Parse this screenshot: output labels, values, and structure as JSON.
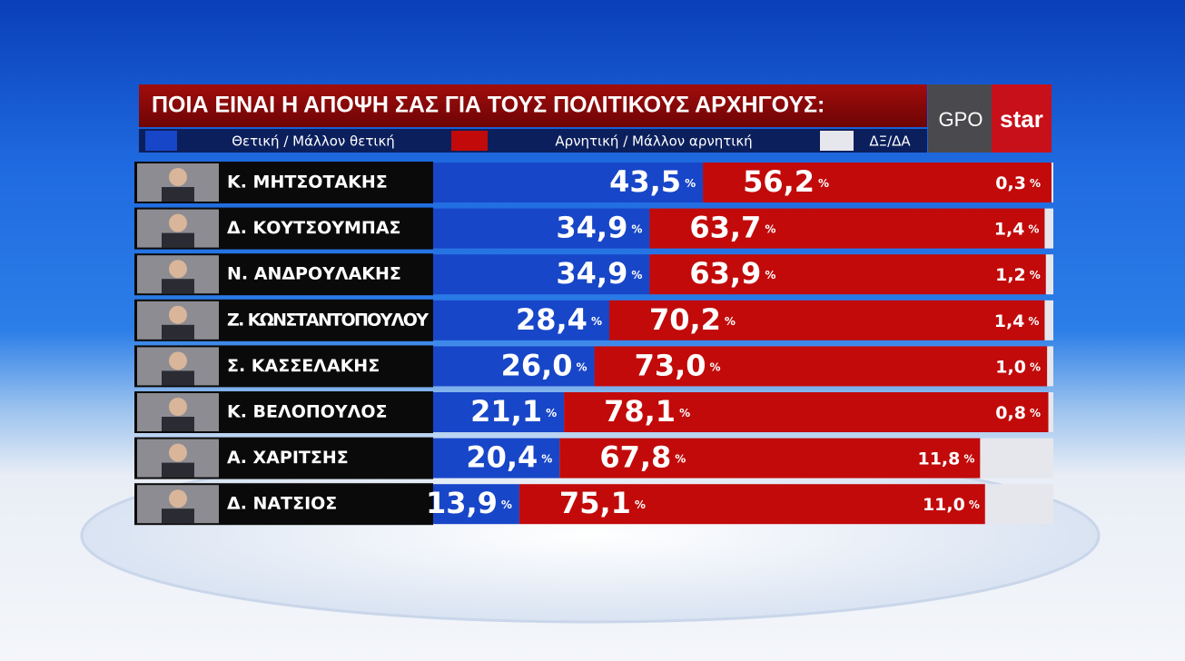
{
  "chart_data": {
    "type": "bar",
    "orientation": "horizontal",
    "stacked": true,
    "title": "ΠΟΙΑ ΕΙΝΑΙ Η ΑΠΟΨΗ ΣΑΣ ΓΙΑ ΤΟΥΣ ΠΟΛΙΤΙΚΟΥΣ ΑΡΧΗΓΟΥΣ:",
    "brand": {
      "gpo": "GPO",
      "star": "star"
    },
    "value_suffix": "%",
    "xlim": [
      0,
      100
    ],
    "categories": [
      "Κ. ΜΗΤΣΟΤΑΚΗΣ",
      "Δ. ΚΟΥΤΣΟΥΜΠΑΣ",
      "Ν. ΑΝΔΡΟΥΛΑΚΗΣ",
      "Ζ. ΚΩΝΣΤΑΝΤΟΠΟΥΛΟΥ",
      "Σ. ΚΑΣΣΕΛΑΚΗΣ",
      "Κ. ΒΕΛΟΠΟΥΛΟΣ",
      "Α. ΧΑΡΙΤΣΗΣ",
      "Δ. ΝΑΤΣΙΟΣ"
    ],
    "series": [
      {
        "name": "Θετική / Μάλλον θετική",
        "color": "#1846c8",
        "values": [
          43.5,
          34.9,
          34.9,
          28.4,
          26.0,
          21.1,
          20.4,
          13.9
        ],
        "value_labels": [
          "43,5",
          "34,9",
          "34,9",
          "28,4",
          "26,0",
          "21,1",
          "20,4",
          "13,9"
        ]
      },
      {
        "name": "Αρνητική / Μάλλον αρνητική",
        "color": "#c20a0a",
        "values": [
          56.2,
          63.7,
          63.9,
          70.2,
          73.0,
          78.1,
          67.8,
          75.1
        ],
        "value_labels": [
          "56,2",
          "63,7",
          "63,9",
          "70,2",
          "73,0",
          "78,1",
          "67,8",
          "75,1"
        ]
      },
      {
        "name": "ΔΞ/ΔΑ",
        "color": "#e6e7ec",
        "values": [
          0.3,
          1.4,
          1.2,
          1.4,
          1.0,
          0.8,
          11.8,
          11.0
        ],
        "value_labels": [
          "0,3",
          "1,4",
          "1,2",
          "1,4",
          "1,0",
          "0,8",
          "11,8",
          "11,0"
        ]
      }
    ]
  }
}
